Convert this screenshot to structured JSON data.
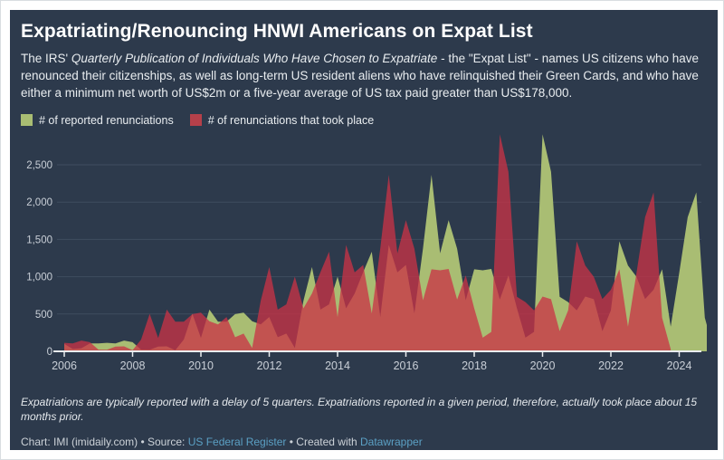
{
  "header": {
    "title": "Expatriating/Renouncing HNWI Americans on Expat List",
    "subtitle_prefix": "The IRS' ",
    "subtitle_italic": "Quarterly Publication of Individuals Who Have Chosen to Expatriate",
    "subtitle_suffix": " - the \"Expat List\" - names US citizens who have renounced their citizenships, as well as long-term US resident aliens who have relinquished their Green Cards, and who have either a minimum net worth of US$2m or a five-year average of US tax paid greater than US$178,000."
  },
  "legend": {
    "items": [
      {
        "label": "# of reported renunciations",
        "color": "#a9bd73"
      },
      {
        "label": "# of renunciations that took place",
        "color": "#b5404a"
      }
    ]
  },
  "footer": {
    "footnote": "Expatriations are typically reported with a delay of 5 quarters. Expatriations reported in a given period, therefore, actually took place about 15 months prior.",
    "byline_prefix": "Chart: IMI (imidaily.com) • Source: ",
    "source_link": "US Federal Register",
    "byline_middle": " • Created with ",
    "credit_link": "Datawrapper"
  },
  "colors": {
    "card_background": "#2d3a4c",
    "grid": "#3f4c5f",
    "axis_line": "#e9ecef",
    "axis_label": "#c9cfd7",
    "reported_green": "#a9bd73",
    "took_place_red": "#cb3246",
    "link_blue": "#5ba0c4"
  },
  "chart_data": {
    "type": "area",
    "title": "Expatriating/Renouncing HNWI Americans on Expat List",
    "xlabel": "",
    "ylabel": "",
    "grid": true,
    "legend_position": "top",
    "x_step": 0.25,
    "x_ticks": [
      2006,
      2008,
      2010,
      2012,
      2014,
      2016,
      2018,
      2020,
      2022,
      2024
    ],
    "y_ticks": [
      0,
      500,
      1000,
      1500,
      2000,
      2500
    ],
    "xlim": [
      2006,
      2025.2
    ],
    "ylim": [
      0,
      2950
    ],
    "series": [
      {
        "name": "# of reported renunciations",
        "color": "#a9bd73",
        "opacity": 1,
        "x_start": 2006,
        "values": [
          100,
          31,
          41,
          106,
          107,
          114,
          105,
          144,
          123,
          23,
          22,
          63,
          67,
          15,
          158,
          503,
          179,
          560,
          397,
          398,
          499,
          519,
          403,
          360,
          460,
          189,
          238,
          45,
          679,
          1130,
          560,
          630,
          1001,
          576,
          776,
          1062,
          1335,
          460,
          1426,
          1058,
          1158,
          509,
          1380,
          2365,
          1313,
          1759,
          1376,
          685,
          1099,
          1086,
          1104,
          694,
          1018,
          577,
          183,
          261,
          2909,
          2407,
          732,
          660,
          548,
          734,
          699,
          270,
          550,
          1475,
          1150,
          1000,
          700,
          825,
          1100,
          330,
          1050,
          1800,
          2130,
          450,
          30
        ]
      },
      {
        "name": "# of renunciations that took place",
        "color": "#cb3246",
        "opacity": 0.76,
        "x_start": 2006,
        "values": [
          114,
          105,
          144,
          123,
          23,
          22,
          63,
          67,
          15,
          158,
          503,
          179,
          560,
          397,
          398,
          499,
          519,
          403,
          360,
          460,
          189,
          238,
          45,
          679,
          1130,
          560,
          630,
          1001,
          576,
          776,
          1062,
          1335,
          460,
          1426,
          1058,
          1158,
          509,
          1380,
          2365,
          1313,
          1759,
          1376,
          685,
          1099,
          1086,
          1104,
          694,
          1018,
          577,
          183,
          261,
          2909,
          2407,
          732,
          660,
          548,
          734,
          699,
          270,
          550,
          1475,
          1150,
          1000,
          700,
          825,
          1100,
          330,
          1050,
          1800,
          2130,
          450,
          30
        ]
      }
    ]
  }
}
